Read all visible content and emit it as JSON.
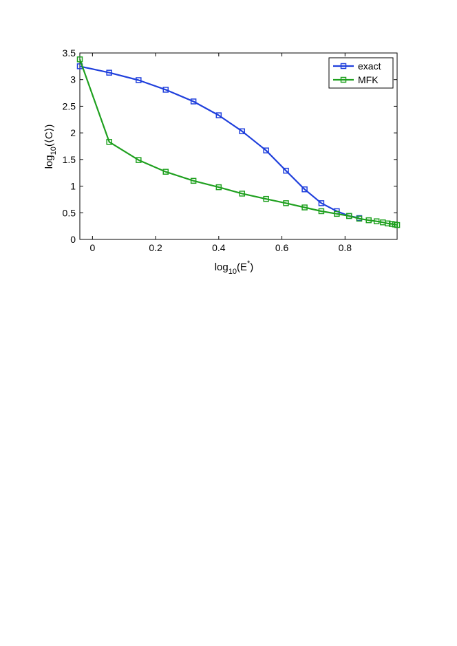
{
  "chart_data": {
    "type": "line",
    "title": "",
    "xlabel": {
      "base": "log",
      "sub": "10",
      "arg": "(E",
      "sup": "*",
      "close": ")"
    },
    "ylabel": {
      "base": "log",
      "sub": "10",
      "arg": "(⟨C⟩)"
    },
    "xlim": [
      -0.04,
      0.965
    ],
    "ylim": [
      0,
      3.5
    ],
    "xticks": [
      0,
      0.2,
      0.4,
      0.6,
      0.8
    ],
    "xtick_labels": [
      "0",
      "0.2",
      "0.4",
      "0.6",
      "0.8"
    ],
    "yticks": [
      0,
      0.5,
      1,
      1.5,
      2,
      2.5,
      3,
      3.5
    ],
    "ytick_labels": [
      "0",
      "0.5",
      "1",
      "1.5",
      "2",
      "2.5",
      "3",
      "3.5"
    ],
    "grid": false,
    "legend_position": "top-right",
    "series": [
      {
        "name": "exact",
        "color": "#1f3fdc",
        "marker": "square",
        "x": [
          -0.04,
          0.053,
          0.146,
          0.232,
          0.32,
          0.4,
          0.474,
          0.55,
          0.613,
          0.672,
          0.725,
          0.774,
          0.813,
          0.845
        ],
        "y": [
          3.25,
          3.13,
          2.99,
          2.81,
          2.59,
          2.33,
          2.03,
          1.67,
          1.29,
          0.94,
          0.68,
          0.53,
          0.44,
          0.4
        ]
      },
      {
        "name": "MFK",
        "color": "#1fa01f",
        "marker": "square",
        "x": [
          -0.04,
          0.053,
          0.146,
          0.232,
          0.32,
          0.4,
          0.474,
          0.55,
          0.613,
          0.672,
          0.725,
          0.774,
          0.813,
          0.845,
          0.875,
          0.9,
          0.92,
          0.935,
          0.948,
          0.958,
          0.965
        ],
        "y": [
          3.38,
          1.83,
          1.49,
          1.27,
          1.1,
          0.98,
          0.86,
          0.76,
          0.68,
          0.6,
          0.53,
          0.48,
          0.44,
          0.39,
          0.36,
          0.34,
          0.32,
          0.3,
          0.29,
          0.28,
          0.27
        ]
      }
    ]
  }
}
